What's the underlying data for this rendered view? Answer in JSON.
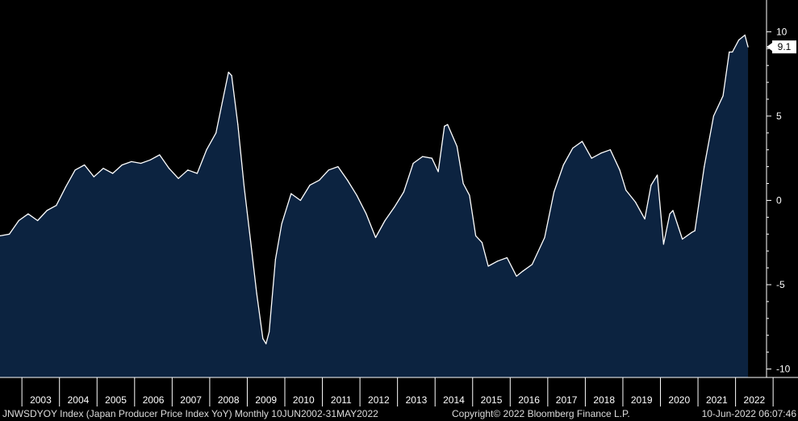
{
  "chart_data": {
    "type": "area",
    "series": [
      {
        "name": "JNWSDYOY Index",
        "x": [
          "2002-06",
          "2002-09",
          "2002-12",
          "2003-03",
          "2003-06",
          "2003-09",
          "2003-12",
          "2004-03",
          "2004-06",
          "2004-09",
          "2004-12",
          "2005-03",
          "2005-06",
          "2005-09",
          "2005-12",
          "2006-03",
          "2006-06",
          "2006-09",
          "2006-12",
          "2007-03",
          "2007-06",
          "2007-09",
          "2007-12",
          "2008-03",
          "2008-05",
          "2008-07",
          "2008-08",
          "2008-10",
          "2008-12",
          "2009-02",
          "2009-04",
          "2009-06",
          "2009-07",
          "2009-08",
          "2009-10",
          "2009-12",
          "2010-03",
          "2010-06",
          "2010-09",
          "2010-12",
          "2011-03",
          "2011-06",
          "2011-09",
          "2011-12",
          "2012-03",
          "2012-06",
          "2012-09",
          "2012-12",
          "2013-03",
          "2013-06",
          "2013-09",
          "2013-12",
          "2014-02",
          "2014-04",
          "2014-05",
          "2014-08",
          "2014-10",
          "2014-12",
          "2015-02",
          "2015-04",
          "2015-06",
          "2015-09",
          "2015-12",
          "2016-03",
          "2016-05",
          "2016-08",
          "2016-12",
          "2017-03",
          "2017-06",
          "2017-09",
          "2017-12",
          "2018-03",
          "2018-06",
          "2018-09",
          "2018-12",
          "2019-02",
          "2019-05",
          "2019-08",
          "2019-10",
          "2019-12",
          "2020-02",
          "2020-04",
          "2020-05",
          "2020-08",
          "2020-11",
          "2020-12",
          "2021-03",
          "2021-06",
          "2021-09",
          "2021-11",
          "2021-12",
          "2022-02",
          "2022-04",
          "2022-05"
        ],
        "values": [
          -2.1,
          -2.0,
          -1.2,
          -0.8,
          -1.2,
          -0.6,
          -0.3,
          0.8,
          1.8,
          2.1,
          1.4,
          1.9,
          1.6,
          2.1,
          2.3,
          2.2,
          2.4,
          2.7,
          1.9,
          1.3,
          1.8,
          1.6,
          3.0,
          4.0,
          5.8,
          7.6,
          7.4,
          4.5,
          0.8,
          -2.3,
          -5.5,
          -8.2,
          -8.5,
          -7.8,
          -3.5,
          -1.4,
          0.4,
          0.0,
          0.9,
          1.2,
          1.8,
          2.0,
          1.2,
          0.3,
          -0.8,
          -2.2,
          -1.2,
          -0.4,
          0.5,
          2.2,
          2.6,
          2.5,
          1.7,
          4.4,
          4.5,
          3.2,
          1.0,
          0.3,
          -2.1,
          -2.5,
          -3.9,
          -3.6,
          -3.4,
          -4.5,
          -4.2,
          -3.8,
          -2.2,
          0.5,
          2.1,
          3.1,
          3.5,
          2.5,
          2.8,
          3.0,
          1.8,
          0.6,
          -0.1,
          -1.1,
          0.9,
          1.5,
          -2.6,
          -0.8,
          -0.6,
          -2.3,
          -1.9,
          -1.8,
          2.0,
          5.0,
          6.2,
          8.8,
          8.8,
          9.5,
          9.8,
          9.1
        ]
      }
    ],
    "xlim": [
      "2002-06",
      "2022-06"
    ],
    "ylim": [
      -10.5,
      11.5
    ],
    "y_ticks": [
      10,
      5,
      0,
      -5,
      -10
    ],
    "x_tick_labels": [
      "2003",
      "2004",
      "2005",
      "2006",
      "2007",
      "2008",
      "2009",
      "2010",
      "2011",
      "2012",
      "2013",
      "2014",
      "2015",
      "2016",
      "2017",
      "2018",
      "2019",
      "2020",
      "2021",
      "2022"
    ],
    "last_value_label": "9.1",
    "colors": {
      "background": "#000000",
      "area_fill": "#0c2340",
      "line": "#ffffff",
      "axis": "#ffffff",
      "text": "#ffffff",
      "label_box": "#ffffff",
      "label_text": "#000000"
    },
    "grid": false
  },
  "footer": {
    "left": "JNWSDYOY Index (Japan Producer Price Index YoY)  Monthly 10JUN2002-31MAY2022",
    "middle": "Copyright© 2022 Bloomberg Finance L.P.",
    "right": "10-Jun-2022 06:07:46"
  }
}
